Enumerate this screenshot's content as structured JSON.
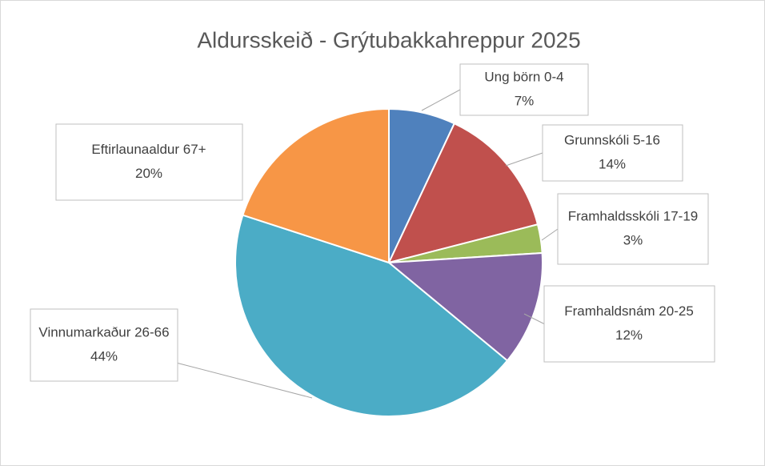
{
  "chart_data": {
    "type": "pie",
    "title": "Aldursskeið - Grýtubakkahreppur 2025",
    "categories": [
      "Ung börn 0-4",
      "Grunnskóli 5-16",
      "Framhaldsskóli 17-19",
      "Framhaldsnám 20-25",
      "Vinnumarkaður 26-66",
      "Eftirlaunaaldur 67+"
    ],
    "values": [
      7,
      14,
      3,
      12,
      44,
      20
    ],
    "value_labels": [
      "7%",
      "14%",
      "3%",
      "12%",
      "44%",
      "20%"
    ],
    "colors": [
      "#4f81bd",
      "#c0504d",
      "#9bbb59",
      "#8064a2",
      "#4bacc6",
      "#f79646"
    ]
  }
}
